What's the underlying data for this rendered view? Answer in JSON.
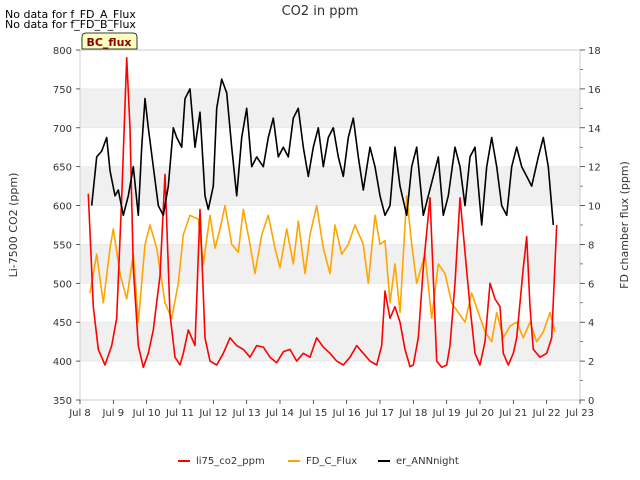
{
  "header_notes": [
    "No data for f_FD_A_Flux",
    "No data for f_FD_B_Flux"
  ],
  "badge": "BC_flux",
  "colors": {
    "li75": "#ff0000",
    "fd": "#ffa500",
    "ann": "#000000",
    "band": "#f0f0f0",
    "badge_fill": "#ffffc0",
    "badge_text": "#8b0000"
  },
  "chart_data": {
    "type": "line",
    "title": "CO2 in ppm",
    "ylabel": "Li-7500 CO2 (ppm)",
    "y2label": "FD chamber flux (ppm)",
    "ylim": [
      350,
      800
    ],
    "y2lim": [
      0,
      18
    ],
    "yticks": [
      350,
      400,
      450,
      500,
      550,
      600,
      650,
      700,
      750,
      800
    ],
    "y2ticks": [
      0,
      2,
      4,
      6,
      8,
      10,
      12,
      14,
      16,
      18
    ],
    "xlim": [
      8,
      23
    ],
    "xticks": [
      {
        "v": 8,
        "label": "Jul 8"
      },
      {
        "v": 9,
        "label": "Jul 9"
      },
      {
        "v": 10,
        "label": "Jul 10"
      },
      {
        "v": 11,
        "label": "Jul 11"
      },
      {
        "v": 12,
        "label": "Jul 12"
      },
      {
        "v": 13,
        "label": "Jul 13"
      },
      {
        "v": 14,
        "label": "Jul 14"
      },
      {
        "v": 15,
        "label": "Jul 15"
      },
      {
        "v": 16,
        "label": "Jul 16"
      },
      {
        "v": 17,
        "label": "Jul 17"
      },
      {
        "v": 18,
        "label": "Jul 18"
      },
      {
        "v": 19,
        "label": "Jul 19"
      },
      {
        "v": 20,
        "label": "Jul 20"
      },
      {
        "v": 21,
        "label": "Jul 21"
      },
      {
        "v": 22,
        "label": "Jul 22"
      },
      {
        "v": 23,
        "label": "Jul 23"
      }
    ],
    "legend_position": "bottom",
    "series": [
      {
        "name": "li75_co2_ppm",
        "axis": "left",
        "color": "#ff0000",
        "x": [
          8.25,
          8.4,
          8.55,
          8.75,
          8.95,
          9.1,
          9.25,
          9.4,
          9.5,
          9.6,
          9.75,
          9.9,
          10.05,
          10.2,
          10.4,
          10.55,
          10.7,
          10.85,
          11.0,
          11.1,
          11.25,
          11.45,
          11.6,
          11.75,
          11.9,
          12.1,
          12.3,
          12.5,
          12.7,
          12.9,
          13.1,
          13.3,
          13.5,
          13.7,
          13.9,
          14.1,
          14.3,
          14.5,
          14.7,
          14.9,
          15.1,
          15.3,
          15.5,
          15.7,
          15.9,
          16.1,
          16.3,
          16.5,
          16.7,
          16.9,
          17.05,
          17.15,
          17.3,
          17.45,
          17.6,
          17.75,
          17.9,
          18.0,
          18.15,
          18.3,
          18.5,
          18.7,
          18.85,
          19.0,
          19.1,
          19.25,
          19.4,
          19.55,
          19.7,
          19.85,
          20.0,
          20.15,
          20.3,
          20.45,
          20.6,
          20.7,
          20.85,
          21.0,
          21.1,
          21.3,
          21.4,
          21.5,
          21.6,
          21.8,
          22.0,
          22.15,
          22.3
        ],
        "y": [
          615,
          470,
          415,
          395,
          420,
          455,
          610,
          790,
          700,
          520,
          420,
          392,
          410,
          440,
          510,
          640,
          460,
          405,
          395,
          410,
          440,
          420,
          595,
          430,
          400,
          395,
          410,
          430,
          420,
          415,
          405,
          420,
          418,
          405,
          398,
          412,
          415,
          400,
          410,
          405,
          430,
          418,
          410,
          400,
          395,
          405,
          420,
          410,
          400,
          395,
          420,
          490,
          455,
          470,
          450,
          415,
          393,
          395,
          430,
          520,
          610,
          400,
          392,
          395,
          420,
          500,
          610,
          540,
          470,
          410,
          395,
          425,
          500,
          480,
          470,
          410,
          395,
          410,
          430,
          520,
          560,
          470,
          415,
          405,
          410,
          430,
          575
        ]
      },
      {
        "name": "FD_C_Flux",
        "axis": "right",
        "color": "#ffa500",
        "x": [
          8.3,
          8.5,
          8.7,
          8.9,
          9.0,
          9.2,
          9.4,
          9.6,
          9.75,
          9.95,
          10.1,
          10.3,
          10.55,
          10.75,
          10.95,
          11.1,
          11.3,
          11.55,
          11.7,
          11.9,
          12.05,
          12.2,
          12.35,
          12.55,
          12.75,
          12.9,
          13.1,
          13.25,
          13.45,
          13.65,
          13.85,
          14.0,
          14.2,
          14.4,
          14.55,
          14.75,
          14.9,
          15.1,
          15.3,
          15.5,
          15.65,
          15.85,
          16.05,
          16.25,
          16.5,
          16.65,
          16.85,
          17.0,
          17.15,
          17.3,
          17.45,
          17.6,
          17.8,
          17.95,
          18.1,
          18.35,
          18.55,
          18.75,
          18.95,
          19.15,
          19.35,
          19.55,
          19.75,
          19.95,
          20.15,
          20.35,
          20.5,
          20.7,
          20.9,
          21.1,
          21.3,
          21.5,
          21.7,
          21.9,
          22.1,
          22.25
        ],
        "y": [
          5.5,
          7.5,
          5.0,
          7.8,
          8.8,
          6.5,
          5.2,
          7.5,
          4.0,
          8.0,
          9.0,
          7.8,
          5.0,
          4.2,
          6.0,
          8.5,
          9.5,
          9.3,
          7.0,
          9.5,
          7.8,
          8.8,
          10.0,
          8.0,
          7.6,
          9.8,
          8.0,
          6.5,
          8.5,
          9.5,
          7.8,
          6.8,
          8.8,
          7.0,
          9.2,
          6.5,
          8.5,
          10.0,
          7.8,
          6.5,
          9.0,
          7.5,
          8.0,
          9.0,
          8.0,
          6.0,
          9.5,
          8.0,
          8.2,
          5.0,
          7.0,
          4.5,
          10.5,
          8.0,
          6.0,
          7.5,
          4.2,
          7.0,
          6.5,
          5.0,
          4.5,
          4.0,
          5.5,
          4.5,
          3.5,
          3.0,
          4.5,
          3.2,
          3.8,
          4.0,
          3.2,
          4.0,
          3.0,
          3.5,
          4.5,
          3.5
        ]
      },
      {
        "name": "er_ANNnight",
        "axis": "right",
        "color": "#000000",
        "x": [
          8.35,
          8.5,
          8.65,
          8.8,
          8.9,
          9.05,
          9.15,
          9.3,
          9.45,
          9.6,
          9.75,
          9.85,
          9.95,
          10.05,
          10.2,
          10.35,
          10.5,
          10.65,
          10.8,
          10.9,
          11.05,
          11.15,
          11.3,
          11.45,
          11.6,
          11.75,
          11.85,
          12.0,
          12.1,
          12.25,
          12.4,
          12.55,
          12.7,
          12.85,
          13.0,
          13.15,
          13.3,
          13.5,
          13.65,
          13.8,
          13.95,
          14.1,
          14.25,
          14.4,
          14.55,
          14.7,
          14.85,
          15.0,
          15.15,
          15.3,
          15.45,
          15.6,
          15.75,
          15.9,
          16.05,
          16.2,
          16.35,
          16.5,
          16.7,
          16.85,
          17.0,
          17.15,
          17.3,
          17.45,
          17.6,
          17.8,
          17.95,
          18.1,
          18.3,
          18.45,
          18.6,
          18.75,
          18.9,
          19.05,
          19.25,
          19.4,
          19.55,
          19.7,
          19.85,
          19.95,
          20.05,
          20.2,
          20.35,
          20.5,
          20.65,
          20.8,
          20.95,
          21.1,
          21.25,
          21.4,
          21.55,
          21.75,
          21.9,
          22.05,
          22.2
        ],
        "y": [
          10.0,
          12.5,
          12.8,
          13.5,
          11.8,
          10.5,
          10.8,
          9.5,
          10.5,
          12.0,
          9.5,
          13.0,
          15.5,
          14.0,
          12.0,
          10.0,
          9.5,
          11.0,
          14.0,
          13.5,
          13.0,
          15.5,
          16.0,
          13.0,
          14.8,
          10.5,
          9.8,
          11.0,
          15.0,
          16.5,
          15.8,
          13.0,
          10.5,
          13.5,
          15.0,
          12.0,
          12.5,
          12.0,
          13.5,
          14.5,
          12.5,
          13.0,
          12.5,
          14.5,
          15.0,
          13.0,
          11.5,
          13.0,
          14.0,
          12.0,
          13.5,
          14.0,
          12.5,
          11.5,
          13.5,
          14.5,
          12.5,
          10.8,
          13.0,
          12.0,
          10.5,
          9.5,
          10.0,
          13.0,
          11.0,
          9.5,
          12.0,
          13.0,
          9.5,
          10.5,
          11.5,
          12.5,
          9.5,
          10.5,
          13.0,
          12.0,
          10.0,
          12.5,
          13.0,
          11.0,
          9.0,
          12.0,
          13.5,
          12.0,
          10.0,
          9.5,
          12.0,
          13.0,
          12.0,
          11.5,
          11.0,
          12.5,
          13.5,
          12.0,
          9.0
        ]
      }
    ]
  }
}
